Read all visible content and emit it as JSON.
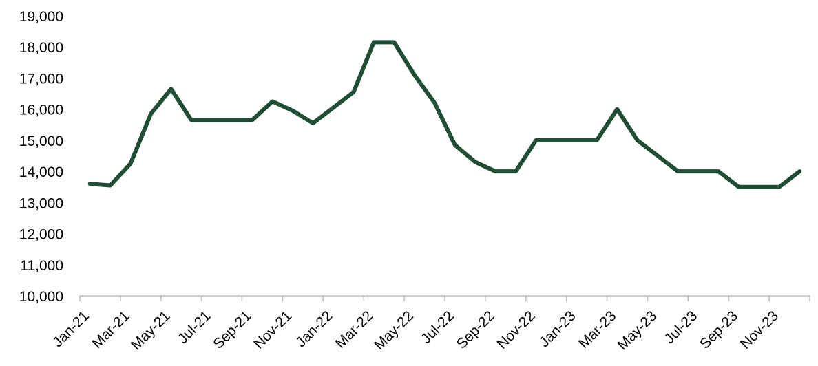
{
  "chart_data": {
    "type": "line",
    "title": "",
    "xlabel": "",
    "ylabel": "",
    "ylim": [
      10000,
      19000
    ],
    "y_ticks": [
      "10,000",
      "11,000",
      "12,000",
      "13,000",
      "14,000",
      "15,000",
      "16,000",
      "17,000",
      "18,000",
      "19,000"
    ],
    "y_tick_values": [
      10000,
      11000,
      12000,
      13000,
      14000,
      15000,
      16000,
      17000,
      18000,
      19000
    ],
    "categories": [
      "Jan-21",
      "Feb-21",
      "Mar-21",
      "Apr-21",
      "May-21",
      "Jun-21",
      "Jul-21",
      "Aug-21",
      "Sep-21",
      "Oct-21",
      "Nov-21",
      "Dec-21",
      "Jan-22",
      "Feb-22",
      "Mar-22",
      "Apr-22",
      "May-22",
      "Jun-22",
      "Jul-22",
      "Aug-22",
      "Sep-22",
      "Oct-22",
      "Nov-22",
      "Dec-22",
      "Jan-23",
      "Feb-23",
      "Mar-23",
      "Apr-23",
      "May-23",
      "Jun-23",
      "Jul-23",
      "Aug-23",
      "Sep-23",
      "Oct-23",
      "Nov-23",
      "Dec-23"
    ],
    "x_tick_labels": [
      "Jan-21",
      "Mar-21",
      "May-21",
      "Jul-21",
      "Sep-21",
      "Nov-21",
      "Jan-22",
      "Mar-22",
      "May-22",
      "Jul-22",
      "Sep-22",
      "Nov-22",
      "Jan-23",
      "Mar-23",
      "May-23",
      "Jul-23",
      "Sep-23",
      "Nov-23"
    ],
    "series": [
      {
        "values": [
          13600,
          13550,
          14250,
          15850,
          16650,
          15650,
          15650,
          15650,
          15650,
          16250,
          15950,
          15550,
          16050,
          16550,
          18150,
          18150,
          17100,
          16200,
          14850,
          14300,
          14000,
          14000,
          15000,
          15000,
          15000,
          15000,
          16000,
          15000,
          14500,
          14000,
          14000,
          14000,
          13500,
          13500,
          13500,
          14000
        ],
        "color": "#1f4e35"
      }
    ],
    "grid": false,
    "legend": "none",
    "axis_color": "#bfbfbf"
  }
}
